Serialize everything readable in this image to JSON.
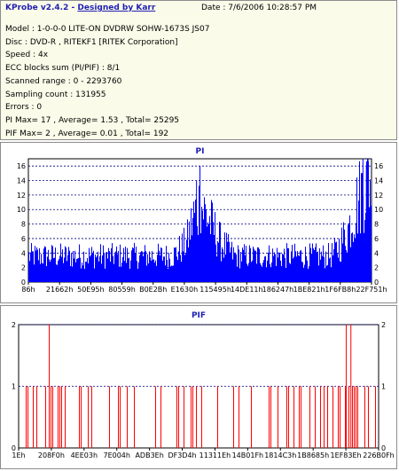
{
  "header": {
    "app_name": "KProbe v2.4.2",
    "author": "Designed by Karr",
    "date_label": "Date :",
    "date_value": "7/6/2006 10:28:57 PM"
  },
  "info": [
    {
      "label": "Model :",
      "value": "1-0-0-0 LITE-ON DVDRW SOHW-1673S JS07"
    },
    {
      "label": "Disc :",
      "value": "DVD-R , RITEKF1 [RITEK Corporation]"
    },
    {
      "label": "Speed :",
      "value": "4x"
    },
    {
      "label": "ECC blocks sum (PI/PIF) :",
      "value": "8/1"
    },
    {
      "label": "Scanned range :",
      "value": "0 - 2293760"
    },
    {
      "label": "Sampling count :",
      "value": "131955"
    },
    {
      "label": "Errors :",
      "value": "0"
    },
    {
      "label": "PI Max=",
      "value": "17 , Average= 1.53 , Total= 25295"
    },
    {
      "label": "PIF Max=",
      "value": "2 , Average= 0.01 , Total= 192"
    }
  ],
  "colors": {
    "info_bg": "#fbfbe9",
    "title_blue": "#1f1fb4",
    "pi_series": "#0000ff",
    "pif_series": "#ff0000",
    "grid": "#000080"
  },
  "chart_data": [
    {
      "type": "bar",
      "title": "PI",
      "ylim": [
        0,
        17
      ],
      "yticks": [
        0,
        2,
        4,
        6,
        8,
        10,
        12,
        14,
        16
      ],
      "xtick_labels": [
        "86h",
        "21662h",
        "50E95h",
        "80559h",
        "B0E2Bh",
        "E1630h",
        "115495h",
        "14DE11h",
        "186247h",
        "1BE821h",
        "1F6FB8h",
        "22F751h"
      ],
      "grid": true,
      "series": [
        {
          "profile": [
            {
              "pos": 0.0,
              "value": 4
            },
            {
              "pos": 0.05,
              "value": 4
            },
            {
              "pos": 0.15,
              "value": 4
            },
            {
              "pos": 0.25,
              "value": 4
            },
            {
              "pos": 0.35,
              "value": 4
            },
            {
              "pos": 0.42,
              "value": 4
            },
            {
              "pos": 0.46,
              "value": 6
            },
            {
              "pos": 0.48,
              "value": 10
            },
            {
              "pos": 0.5,
              "value": 12
            },
            {
              "pos": 0.52,
              "value": 10
            },
            {
              "pos": 0.54,
              "value": 8
            },
            {
              "pos": 0.56,
              "value": 6
            },
            {
              "pos": 0.6,
              "value": 4
            },
            {
              "pos": 0.7,
              "value": 4
            },
            {
              "pos": 0.8,
              "value": 4
            },
            {
              "pos": 0.88,
              "value": 4
            },
            {
              "pos": 0.9,
              "value": 5
            },
            {
              "pos": 0.93,
              "value": 8
            },
            {
              "pos": 0.95,
              "value": 11
            },
            {
              "pos": 0.97,
              "value": 14
            },
            {
              "pos": 0.99,
              "value": 16
            },
            {
              "pos": 1.0,
              "value": 16
            }
          ],
          "peaks": [
            {
              "pos": 0.5,
              "value": 16
            },
            {
              "pos": 0.49,
              "value": 14
            },
            {
              "pos": 0.975,
              "value": 17
            },
            {
              "pos": 0.99,
              "value": 17
            },
            {
              "pos": 0.985,
              "value": 16
            }
          ]
        }
      ]
    },
    {
      "type": "bar",
      "title": "PIF",
      "ylim": [
        0,
        2
      ],
      "yticks": [
        0,
        1,
        2
      ],
      "xtick_labels": [
        "1Eh",
        "208F0h",
        "4EE03h",
        "7E004h",
        "ADB3Eh",
        "DF3D4h",
        "11311Eh",
        "14B01Fh",
        "1814C3h",
        "1B8685h",
        "1EF83Eh",
        "226B0Fh"
      ],
      "grid": true,
      "series": [
        {
          "value_two_at": [
            0.085,
            0.91,
            0.923
          ],
          "dense_zones": [
            {
              "from": 0.0,
              "to": 0.12,
              "density": 0.55
            },
            {
              "from": 0.12,
              "to": 0.2,
              "density": 0.35
            },
            {
              "from": 0.2,
              "to": 0.32,
              "density": 0.55
            },
            {
              "from": 0.32,
              "to": 0.45,
              "density": 0.45
            },
            {
              "from": 0.45,
              "to": 0.55,
              "density": 0.6
            },
            {
              "from": 0.55,
              "to": 0.68,
              "density": 0.35
            },
            {
              "from": 0.68,
              "to": 0.82,
              "density": 0.5
            },
            {
              "from": 0.82,
              "to": 1.0,
              "density": 0.75
            }
          ]
        }
      ]
    }
  ]
}
